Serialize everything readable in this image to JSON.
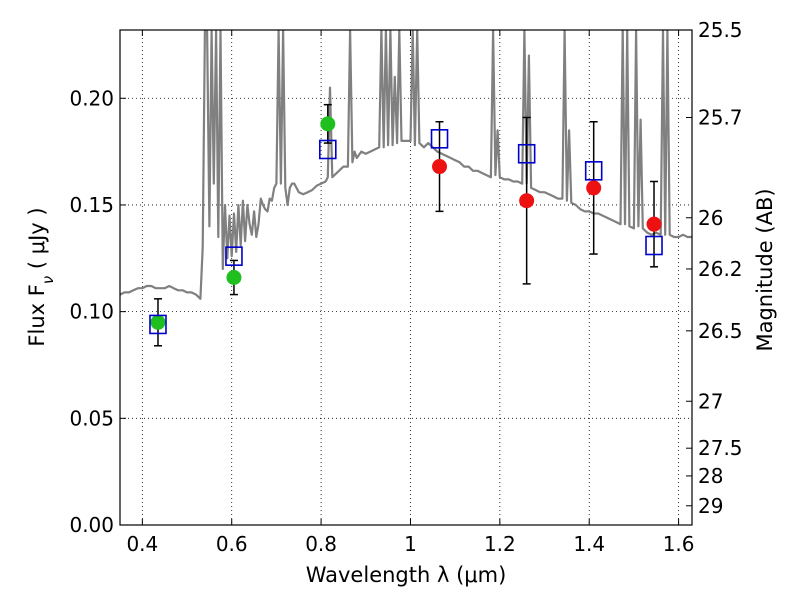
{
  "chart_data": {
    "type": "scatter",
    "xlabel": "Wavelength  λ (μm)",
    "ylabel": "Flux  F",
    "ylabel_sub": "ν",
    "ylabel_unit": " ( μJy )",
    "y2label": "Magnitude (AB)",
    "xlim": [
      0.35,
      1.63
    ],
    "ylim": [
      0.0,
      0.232
    ],
    "xticks": [
      0.4,
      0.6,
      0.8,
      1.0,
      1.2,
      1.4,
      1.6
    ],
    "xtick_labels": [
      "0.4",
      "0.6",
      "0.8",
      "1",
      "1.2",
      "1.4",
      "1.6"
    ],
    "yticks": [
      0.0,
      0.05,
      0.1,
      0.15,
      0.2
    ],
    "ytick_labels": [
      "0.00",
      "0.05",
      "0.10",
      "0.15",
      "0.20"
    ],
    "y2ticks": [
      {
        "label": "25.5",
        "flux": 0.232
      },
      {
        "label": "25.7",
        "flux": 0.191
      },
      {
        "label": "26",
        "flux": 0.144
      },
      {
        "label": "26.2",
        "flux": 0.12
      },
      {
        "label": "26.5",
        "flux": 0.091
      },
      {
        "label": "27",
        "flux": 0.058
      },
      {
        "label": "27.5",
        "flux": 0.036
      },
      {
        "label": "28",
        "flux": 0.023
      },
      {
        "label": "29",
        "flux": 0.009
      }
    ],
    "grid": true,
    "series": [
      {
        "kind": "green-points",
        "color": "#1fbf1f",
        "x": [
          0.435,
          0.605,
          0.815
        ],
        "y": [
          0.095,
          0.116,
          0.188
        ],
        "err": [
          0.011,
          0.008,
          0.009
        ]
      },
      {
        "kind": "red-points",
        "color": "#ee1111",
        "x": [
          1.065,
          1.26,
          1.41,
          1.545
        ],
        "y": [
          0.168,
          0.152,
          0.158,
          0.141
        ],
        "err": [
          0.021,
          0.039,
          0.031,
          0.02
        ]
      },
      {
        "kind": "model-squares",
        "color": "#0000cc",
        "x": [
          0.435,
          0.605,
          0.815,
          1.065,
          1.26,
          1.41,
          1.545
        ],
        "y": [
          0.094,
          0.126,
          0.176,
          0.181,
          0.174,
          0.166,
          0.131
        ]
      },
      {
        "kind": "template-spectrum",
        "color": "#808080",
        "x": [
          0.35,
          0.36,
          0.37,
          0.38,
          0.39,
          0.4,
          0.41,
          0.42,
          0.43,
          0.44,
          0.45,
          0.46,
          0.47,
          0.48,
          0.49,
          0.5,
          0.51,
          0.52,
          0.53,
          0.535,
          0.54,
          0.545,
          0.55,
          0.555,
          0.56,
          0.565,
          0.57,
          0.575,
          0.58,
          0.585,
          0.59,
          0.595,
          0.6,
          0.605,
          0.61,
          0.615,
          0.62,
          0.625,
          0.63,
          0.635,
          0.64,
          0.645,
          0.65,
          0.655,
          0.66,
          0.665,
          0.67,
          0.675,
          0.68,
          0.685,
          0.69,
          0.695,
          0.7,
          0.705,
          0.71,
          0.715,
          0.72,
          0.725,
          0.73,
          0.735,
          0.74,
          0.75,
          0.76,
          0.77,
          0.78,
          0.79,
          0.8,
          0.81,
          0.815,
          0.82,
          0.825,
          0.83,
          0.84,
          0.85,
          0.86,
          0.865,
          0.87,
          0.875,
          0.88,
          0.89,
          0.9,
          0.91,
          0.92,
          0.93,
          0.935,
          0.94,
          0.945,
          0.95,
          0.955,
          0.96,
          0.965,
          0.97,
          0.975,
          0.98,
          0.99,
          1.0,
          1.005,
          1.01,
          1.015,
          1.02,
          1.03,
          1.04,
          1.05,
          1.06,
          1.07,
          1.08,
          1.09,
          1.1,
          1.11,
          1.12,
          1.13,
          1.14,
          1.15,
          1.16,
          1.17,
          1.18,
          1.185,
          1.19,
          1.195,
          1.2,
          1.21,
          1.22,
          1.23,
          1.24,
          1.25,
          1.255,
          1.26,
          1.265,
          1.27,
          1.28,
          1.29,
          1.3,
          1.31,
          1.32,
          1.33,
          1.34,
          1.345,
          1.35,
          1.355,
          1.36,
          1.37,
          1.38,
          1.39,
          1.4,
          1.41,
          1.42,
          1.43,
          1.44,
          1.45,
          1.46,
          1.47,
          1.475,
          1.48,
          1.485,
          1.49,
          1.5,
          1.505,
          1.51,
          1.515,
          1.52,
          1.53,
          1.54,
          1.55,
          1.56,
          1.565,
          1.57,
          1.575,
          1.58,
          1.59,
          1.6,
          1.61,
          1.62,
          1.63
        ],
        "y": [
          0.108,
          0.109,
          0.109,
          0.11,
          0.111,
          0.111,
          0.112,
          0.112,
          0.111,
          0.111,
          0.111,
          0.112,
          0.111,
          0.11,
          0.11,
          0.109,
          0.109,
          0.108,
          0.106,
          0.13,
          0.232,
          0.232,
          0.14,
          0.232,
          0.16,
          0.232,
          0.135,
          0.232,
          0.12,
          0.15,
          0.125,
          0.145,
          0.126,
          0.146,
          0.128,
          0.15,
          0.131,
          0.152,
          0.133,
          0.15,
          0.141,
          0.136,
          0.147,
          0.135,
          0.141,
          0.153,
          0.15,
          0.148,
          0.147,
          0.153,
          0.152,
          0.158,
          0.16,
          0.232,
          0.16,
          0.232,
          0.158,
          0.15,
          0.158,
          0.16,
          0.16,
          0.156,
          0.155,
          0.156,
          0.157,
          0.159,
          0.16,
          0.161,
          0.163,
          0.205,
          0.163,
          0.164,
          0.166,
          0.168,
          0.168,
          0.232,
          0.17,
          0.175,
          0.172,
          0.175,
          0.174,
          0.175,
          0.176,
          0.177,
          0.232,
          0.177,
          0.232,
          0.178,
          0.232,
          0.178,
          0.21,
          0.179,
          0.232,
          0.18,
          0.18,
          0.18,
          0.232,
          0.178,
          0.232,
          0.179,
          0.177,
          0.179,
          0.177,
          0.175,
          0.174,
          0.173,
          0.172,
          0.171,
          0.17,
          0.168,
          0.168,
          0.166,
          0.166,
          0.165,
          0.164,
          0.163,
          0.232,
          0.164,
          0.185,
          0.163,
          0.162,
          0.162,
          0.161,
          0.161,
          0.16,
          0.232,
          0.16,
          0.22,
          0.158,
          0.157,
          0.156,
          0.156,
          0.155,
          0.154,
          0.153,
          0.153,
          0.232,
          0.152,
          0.185,
          0.151,
          0.15,
          0.148,
          0.147,
          0.147,
          0.146,
          0.146,
          0.145,
          0.144,
          0.143,
          0.142,
          0.141,
          0.232,
          0.141,
          0.232,
          0.14,
          0.139,
          0.232,
          0.14,
          0.19,
          0.139,
          0.137,
          0.136,
          0.137,
          0.136,
          0.232,
          0.136,
          0.232,
          0.136,
          0.135,
          0.135,
          0.136,
          0.135,
          0.135
        ]
      }
    ]
  }
}
